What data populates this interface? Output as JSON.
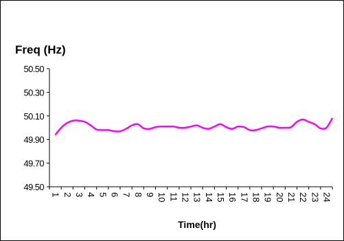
{
  "chart_data": {
    "type": "line",
    "title": "Freq (Hz)",
    "xlabel": "Time(hr)",
    "ylabel": "",
    "ylim": [
      49.5,
      50.5
    ],
    "y_ticks": [
      "50.50",
      "50.30",
      "50.10",
      "49.90",
      "49.70",
      "49.50"
    ],
    "x_tick_labels": [
      "1",
      "2",
      "3",
      "4",
      "5",
      "6",
      "7",
      "8",
      "9",
      "10",
      "11",
      "12",
      "13",
      "14",
      "15",
      "16",
      "17",
      "18",
      "19",
      "20",
      "21",
      "22",
      "23",
      "24"
    ],
    "x_tick_rotation": "vertical",
    "grid": false,
    "legend": "none",
    "series": [
      {
        "color": "#ff00ff",
        "x": [
          0.5,
          1,
          1.5,
          2,
          2.5,
          3,
          3.5,
          4,
          4.5,
          5,
          5.5,
          6,
          6.5,
          7,
          7.5,
          8,
          8.5,
          9,
          9.5,
          10,
          10.5,
          11,
          11.5,
          12,
          12.5,
          13,
          13.5,
          14,
          14.5,
          15,
          15.5,
          16,
          16.5,
          17,
          17.5,
          18,
          18.5,
          19,
          19.5,
          20,
          20.5,
          21,
          21.5,
          22,
          22.5,
          23,
          23.5,
          24
        ],
        "values": [
          49.94,
          50.0,
          50.04,
          50.06,
          50.06,
          50.05,
          50.02,
          49.985,
          49.98,
          49.98,
          49.97,
          49.97,
          49.99,
          50.02,
          50.03,
          49.995,
          49.99,
          50.005,
          50.01,
          50.01,
          50.01,
          50.0,
          50.0,
          50.01,
          50.02,
          50.0,
          49.99,
          50.01,
          50.03,
          50.005,
          49.99,
          50.01,
          50.005,
          49.98,
          49.98,
          49.995,
          50.01,
          50.01,
          50.0,
          50.0,
          50.005,
          50.05,
          50.07,
          50.05,
          50.03,
          49.995,
          50.0,
          50.08
        ]
      }
    ]
  }
}
